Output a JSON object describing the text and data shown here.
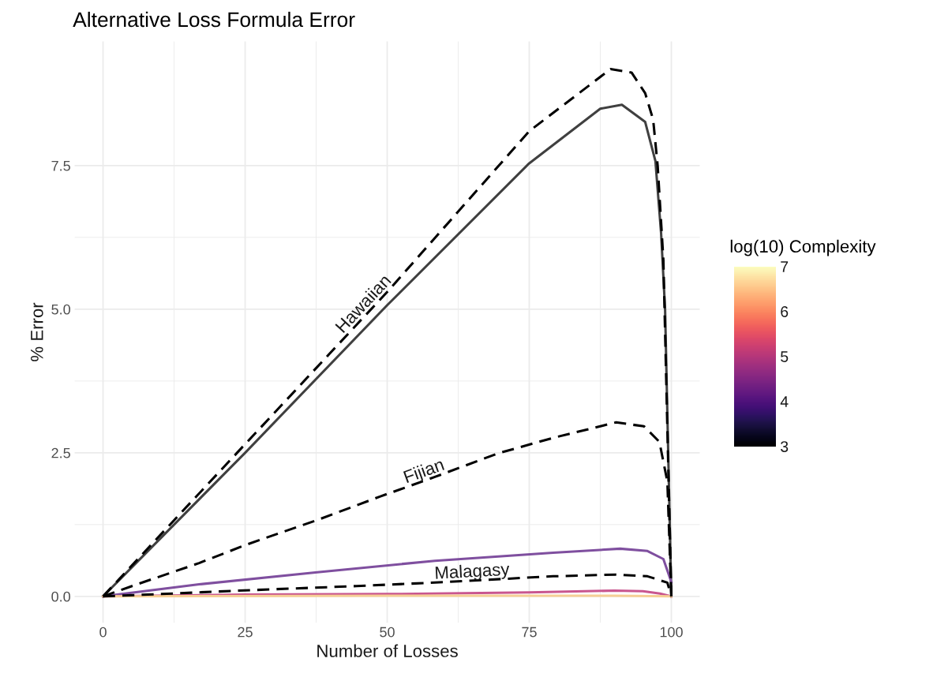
{
  "chart_data": {
    "type": "line",
    "title": "Alternative Loss Formula Error",
    "xlabel": "Number of Losses",
    "ylabel": "% Error",
    "clabel": "log(10) Complexity",
    "xlim": [
      -5,
      105
    ],
    "ylim": [
      -0.46,
      9.66
    ],
    "xticks": [
      0,
      25,
      50,
      75,
      100
    ],
    "yticks": [
      {
        "value": 0,
        "label": "0.0"
      },
      {
        "value": 2.5,
        "label": "2.5"
      },
      {
        "value": 5,
        "label": "5.0"
      },
      {
        "value": 7.5,
        "label": "7.5"
      }
    ],
    "clim": [
      3,
      7
    ],
    "cticks": [
      3,
      4,
      5,
      6,
      7
    ],
    "grid": true,
    "legend": "right",
    "series": [
      {
        "color": "#404040",
        "line_style": "solid",
        "x": [
          0,
          25,
          50,
          75,
          87.5,
          91.3,
          95.4,
          97.2,
          98.2,
          98.9,
          100
        ],
        "values": [
          0,
          2.5,
          5.07,
          7.54,
          8.49,
          8.56,
          8.26,
          7.58,
          6.32,
          5.0,
          0
        ]
      },
      {
        "color": "#7f4f9f",
        "line_style": "solid",
        "x": [
          0,
          16.9,
          37.7,
          58.4,
          79.2,
          91,
          95.8,
          98.6,
          100
        ],
        "values": [
          0,
          0.21,
          0.42,
          0.62,
          0.76,
          0.83,
          0.79,
          0.65,
          0.25
        ]
      },
      {
        "color": "#c9568f",
        "line_style": "solid",
        "x": [
          0,
          25,
          50,
          75,
          90,
          95,
          98,
          100
        ],
        "values": [
          0,
          0.03,
          0.04,
          0.07,
          0.1,
          0.09,
          0.05,
          0
        ]
      },
      {
        "color": "#f6cf95",
        "line_style": "solid",
        "x": [
          0,
          50,
          90,
          100
        ],
        "values": [
          0,
          0.01,
          0.01,
          0
        ]
      },
      {
        "name": "Hawaiian",
        "color": "#000000",
        "line_style": "dashed",
        "x": [
          0,
          25,
          50,
          75,
          89.3,
          93,
          95.4,
          96.8,
          97.6,
          98.6,
          100
        ],
        "values": [
          0,
          2.65,
          5.3,
          8.1,
          9.18,
          9.12,
          8.76,
          8.3,
          7.49,
          5.86,
          0
        ]
      },
      {
        "name": "Fijian",
        "color": "#000000",
        "line_style": "dashed",
        "x": [
          0,
          5.1,
          16.9,
          25.2,
          37.7,
          48.8,
          58.4,
          69.5,
          79.2,
          90.3,
          95.2,
          97.9,
          99.3,
          100
        ],
        "values": [
          0,
          0.18,
          0.58,
          0.9,
          1.33,
          1.74,
          2.08,
          2.49,
          2.76,
          3.03,
          2.96,
          2.69,
          2.0,
          0
        ]
      },
      {
        "name": "Malagasy",
        "color": "#000000",
        "line_style": "dashed",
        "x": [
          0,
          10,
          23.8,
          44.6,
          58.4,
          79.2,
          90.3,
          95.8,
          99.3,
          100
        ],
        "values": [
          0,
          0.04,
          0.1,
          0.18,
          0.24,
          0.35,
          0.38,
          0.35,
          0.24,
          0
        ]
      }
    ]
  }
}
